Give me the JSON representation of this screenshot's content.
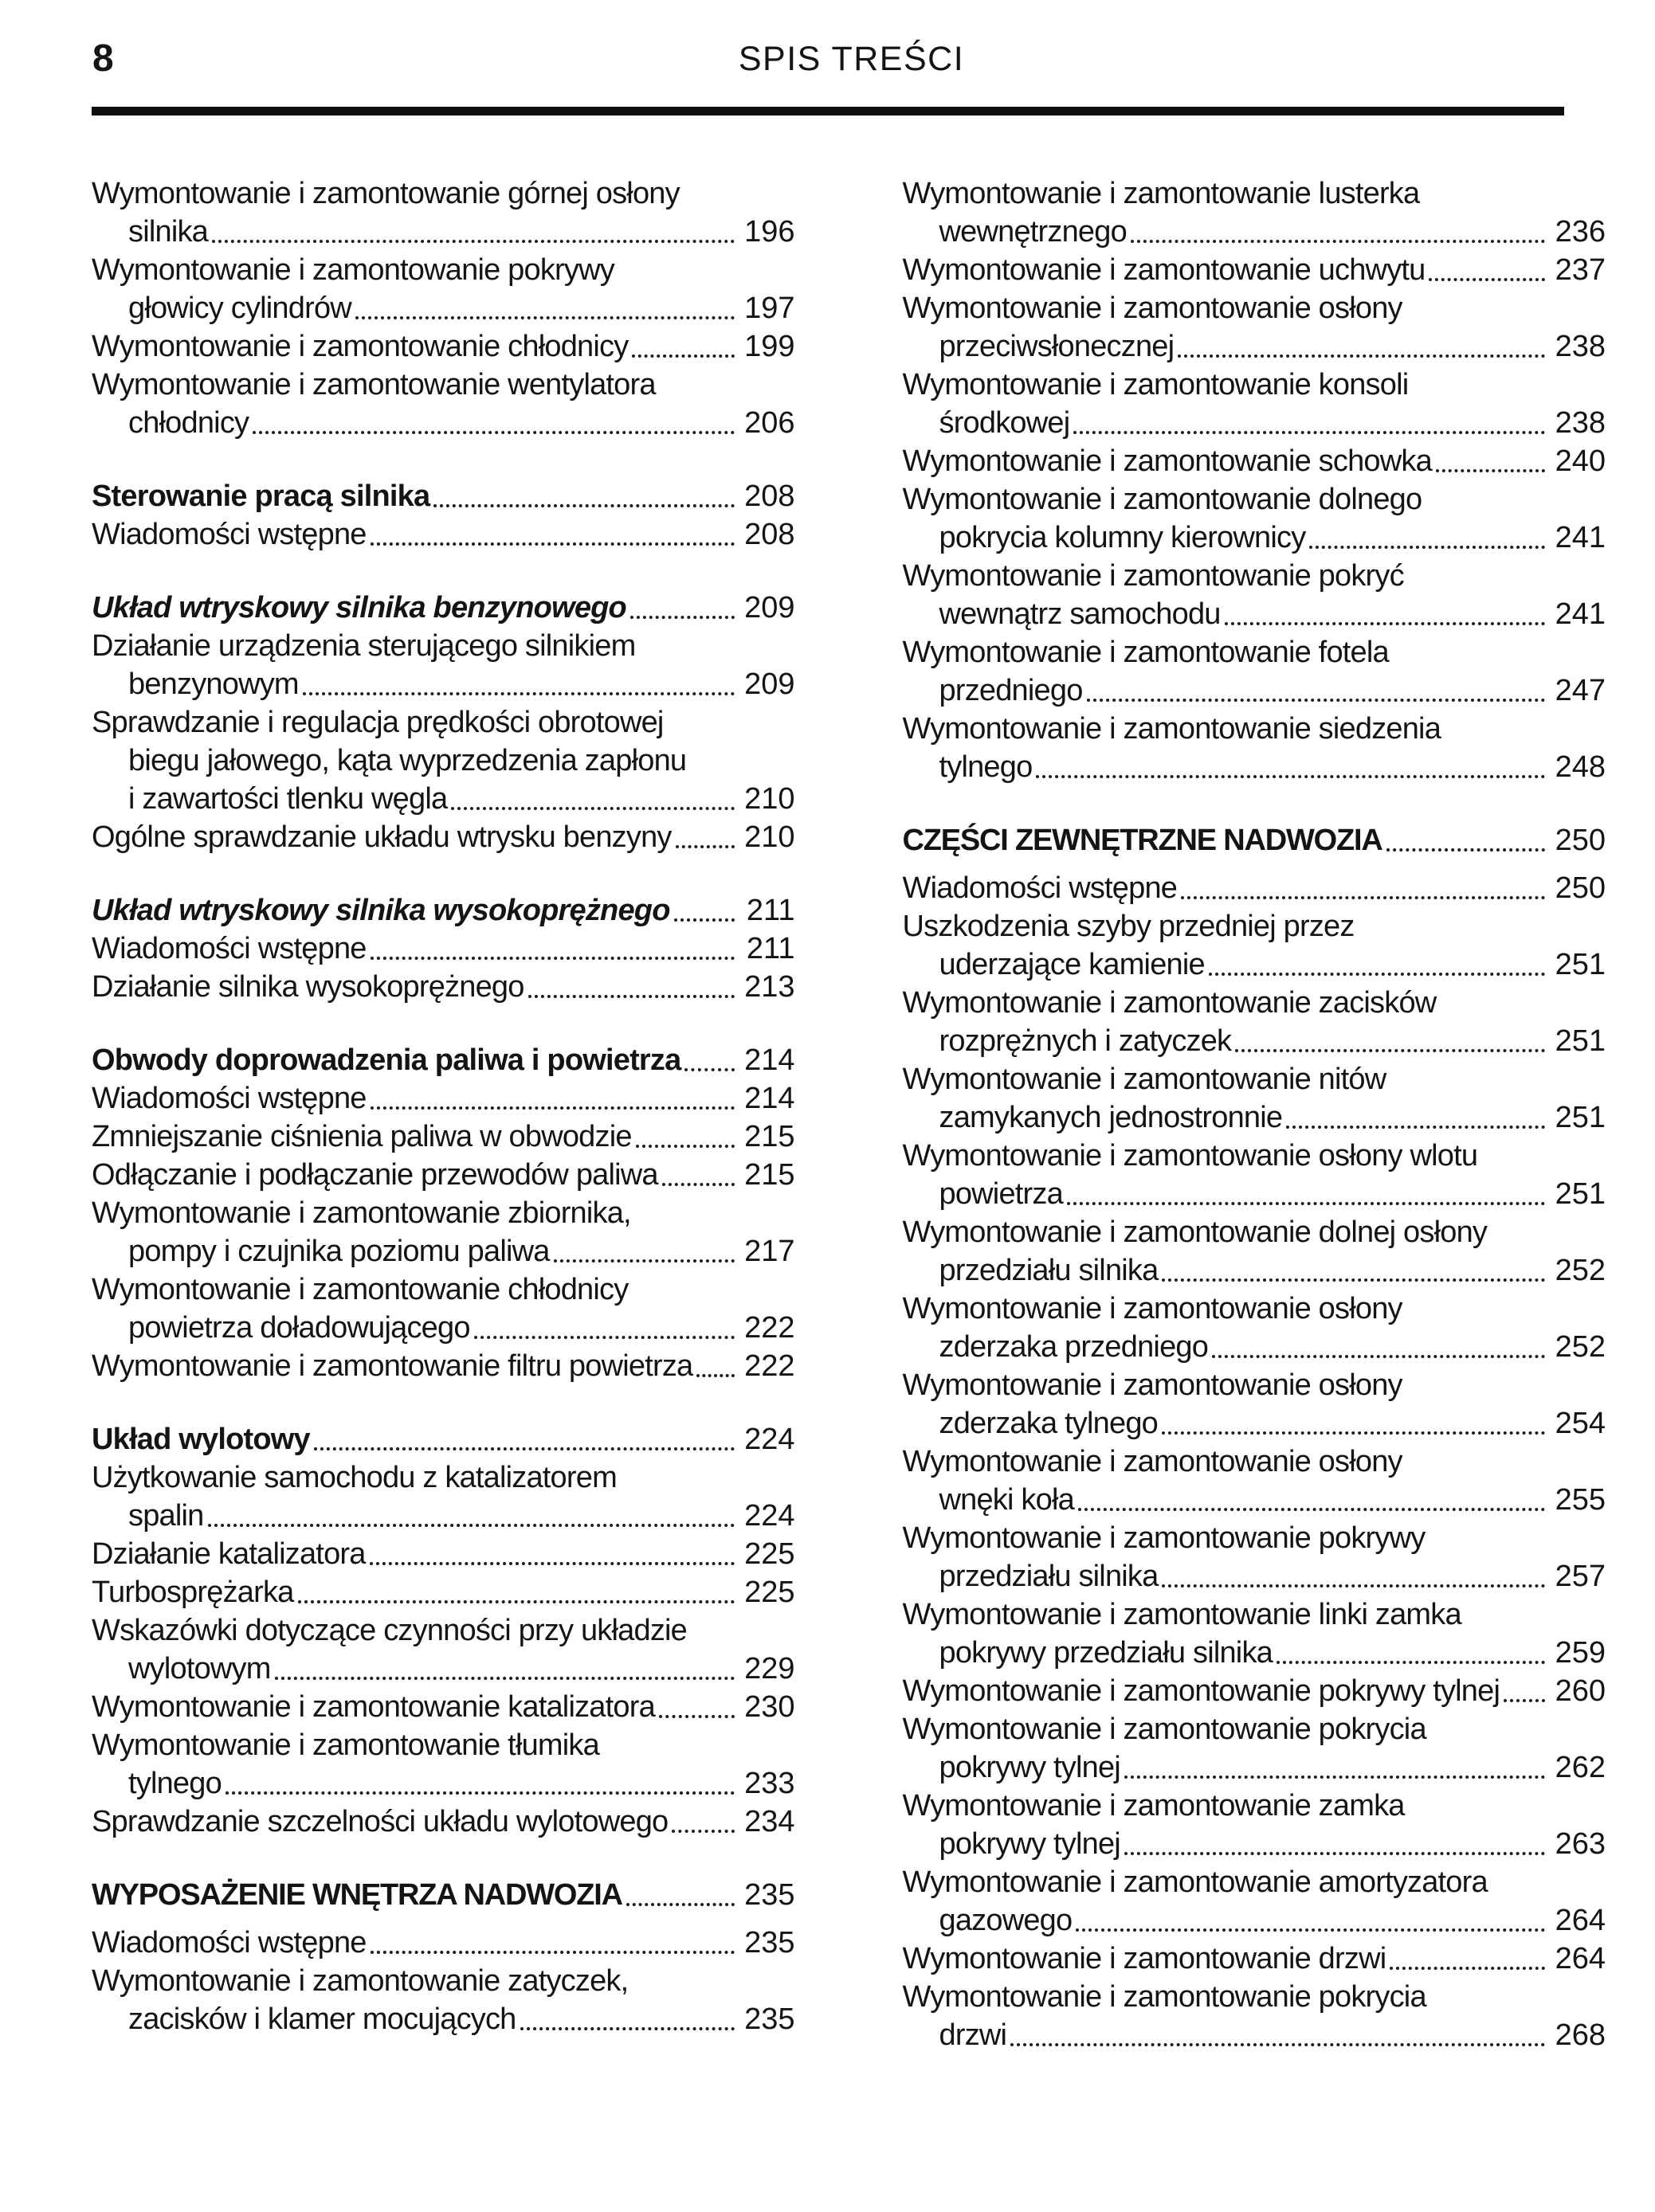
{
  "header": {
    "folio": "8",
    "title": "SPIS TREŚCI"
  },
  "toc": {
    "left": [
      {
        "lines": [
          "Wymontowanie i zamontowanie górnej osłony",
          "silnika"
        ],
        "page": "196"
      },
      {
        "lines": [
          "Wymontowanie i zamontowanie pokrywy",
          "głowicy cylindrów"
        ],
        "page": "197"
      },
      {
        "lines": [
          "Wymontowanie i zamontowanie chłodnicy"
        ],
        "page": "199"
      },
      {
        "lines": [
          "Wymontowanie i zamontowanie wentylatora",
          "chłodnicy"
        ],
        "page": "206"
      },
      {
        "style": "bold",
        "gap": true,
        "lines": [
          "Sterowanie pracą silnika"
        ],
        "page": "208"
      },
      {
        "lines": [
          "Wiadomości wstępne"
        ],
        "page": "208"
      },
      {
        "style": "bold-italic",
        "gap": true,
        "lines": [
          "Układ wtryskowy silnika benzynowego"
        ],
        "page": "209"
      },
      {
        "lines": [
          "Działanie urządzenia sterującego silnikiem",
          "benzynowym"
        ],
        "page": "209"
      },
      {
        "lines": [
          "Sprawdzanie i regulacja prędkości obrotowej",
          "biegu jałowego, kąta wyprzedzenia zapłonu",
          "i zawartości tlenku węgla"
        ],
        "page": "210"
      },
      {
        "lines": [
          "Ogólne sprawdzanie układu wtrysku benzyny"
        ],
        "page": "210"
      },
      {
        "style": "bold-italic",
        "gap": true,
        "lines": [
          "Układ wtryskowy silnika wysokoprężnego"
        ],
        "page": "211"
      },
      {
        "lines": [
          "Wiadomości wstępne"
        ],
        "page": "211"
      },
      {
        "lines": [
          "Działanie silnika wysokoprężnego"
        ],
        "page": "213"
      },
      {
        "style": "bold",
        "gap": true,
        "lines": [
          "Obwody doprowadzenia paliwa i powietrza"
        ],
        "page": "214"
      },
      {
        "lines": [
          "Wiadomości wstępne"
        ],
        "page": "214"
      },
      {
        "lines": [
          "Zmniejszanie ciśnienia paliwa w obwodzie"
        ],
        "page": "215"
      },
      {
        "lines": [
          "Odłączanie i podłączanie przewodów paliwa"
        ],
        "page": "215"
      },
      {
        "lines": [
          "Wymontowanie i zamontowanie zbiornika,",
          "pompy i czujnika poziomu paliwa"
        ],
        "page": "217"
      },
      {
        "lines": [
          "Wymontowanie i zamontowanie chłodnicy",
          "powietrza doładowującego"
        ],
        "page": "222"
      },
      {
        "lines": [
          "Wymontowanie i zamontowanie filtru powietrza"
        ],
        "page": "222"
      },
      {
        "style": "bold",
        "gap": true,
        "lines": [
          "Układ wylotowy"
        ],
        "page": "224"
      },
      {
        "lines": [
          "Użytkowanie samochodu z katalizatorem",
          "spalin"
        ],
        "page": "224"
      },
      {
        "lines": [
          "Działanie katalizatora"
        ],
        "page": "225"
      },
      {
        "lines": [
          "Turbosprężarka"
        ],
        "page": "225"
      },
      {
        "lines": [
          "Wskazówki dotyczące czynności przy układzie",
          "wylotowym"
        ],
        "page": "229"
      },
      {
        "lines": [
          "Wymontowanie i zamontowanie katalizatora"
        ],
        "page": "230"
      },
      {
        "lines": [
          "Wymontowanie i zamontowanie tłumika",
          "tylnego"
        ],
        "page": "233"
      },
      {
        "lines": [
          "Sprawdzanie szczelności układu wylotowego"
        ],
        "page": "234"
      },
      {
        "style": "caps",
        "gap": true,
        "lines": [
          "WYPOSAŻENIE WNĘTRZA NADWOZIA"
        ],
        "page": "235"
      },
      {
        "lines": [
          "Wiadomości wstępne"
        ],
        "page": "235"
      },
      {
        "lines": [
          "Wymontowanie i zamontowanie zatyczek,",
          "zacisków i klamer mocujących"
        ],
        "page": "235"
      }
    ],
    "right": [
      {
        "lines": [
          "Wymontowanie i zamontowanie lusterka",
          "wewnętrznego"
        ],
        "page": "236"
      },
      {
        "lines": [
          "Wymontowanie i zamontowanie uchwytu"
        ],
        "page": "237"
      },
      {
        "lines": [
          "Wymontowanie i zamontowanie osłony",
          "przeciwsłonecznej"
        ],
        "page": "238"
      },
      {
        "lines": [
          "Wymontowanie i zamontowanie konsoli",
          "środkowej"
        ],
        "page": "238"
      },
      {
        "lines": [
          "Wymontowanie i zamontowanie schowka"
        ],
        "page": "240"
      },
      {
        "lines": [
          "Wymontowanie i zamontowanie dolnego",
          "pokrycia kolumny kierownicy"
        ],
        "page": "241"
      },
      {
        "lines": [
          "Wymontowanie i zamontowanie pokryć",
          "wewnątrz samochodu"
        ],
        "page": "241"
      },
      {
        "lines": [
          "Wymontowanie i zamontowanie fotela",
          "przedniego"
        ],
        "page": "247"
      },
      {
        "lines": [
          "Wymontowanie i zamontowanie siedzenia",
          "tylnego"
        ],
        "page": "248"
      },
      {
        "style": "caps",
        "gap": true,
        "lines": [
          "CZĘŚCI ZEWNĘTRZNE NADWOZIA"
        ],
        "page": "250"
      },
      {
        "lines": [
          "Wiadomości wstępne"
        ],
        "page": "250"
      },
      {
        "lines": [
          "Uszkodzenia szyby przedniej przez",
          "uderzające kamienie"
        ],
        "page": "251"
      },
      {
        "lines": [
          "Wymontowanie i zamontowanie zacisków",
          "rozprężnych i zatyczek"
        ],
        "page": "251"
      },
      {
        "lines": [
          "Wymontowanie i zamontowanie nitów",
          "zamykanych jednostronnie"
        ],
        "page": "251"
      },
      {
        "lines": [
          "Wymontowanie i zamontowanie osłony wlotu",
          "powietrza"
        ],
        "page": "251"
      },
      {
        "lines": [
          "Wymontowanie i zamontowanie dolnej osłony",
          "przedziału silnika"
        ],
        "page": "252"
      },
      {
        "lines": [
          "Wymontowanie i zamontowanie osłony",
          "zderzaka przedniego"
        ],
        "page": "252"
      },
      {
        "lines": [
          "Wymontowanie i zamontowanie osłony",
          "zderzaka tylnego"
        ],
        "page": "254"
      },
      {
        "lines": [
          "Wymontowanie i zamontowanie osłony",
          "wnęki koła"
        ],
        "page": "255"
      },
      {
        "lines": [
          "Wymontowanie i zamontowanie pokrywy",
          "przedziału silnika"
        ],
        "page": "257"
      },
      {
        "lines": [
          "Wymontowanie i zamontowanie linki zamka",
          "pokrywy przedziału silnika"
        ],
        "page": "259"
      },
      {
        "lines": [
          "Wymontowanie i zamontowanie pokrywy tylnej"
        ],
        "page": "260"
      },
      {
        "lines": [
          "Wymontowanie i zamontowanie pokrycia",
          "pokrywy tylnej"
        ],
        "page": "262"
      },
      {
        "lines": [
          "Wymontowanie i zamontowanie zamka",
          "pokrywy tylnej"
        ],
        "page": "263"
      },
      {
        "lines": [
          "Wymontowanie i zamontowanie amortyzatora",
          "gazowego"
        ],
        "page": "264"
      },
      {
        "lines": [
          "Wymontowanie i zamontowanie drzwi"
        ],
        "page": "264"
      },
      {
        "lines": [
          "Wymontowanie i zamontowanie pokrycia",
          "drzwi"
        ],
        "page": "268"
      }
    ]
  }
}
